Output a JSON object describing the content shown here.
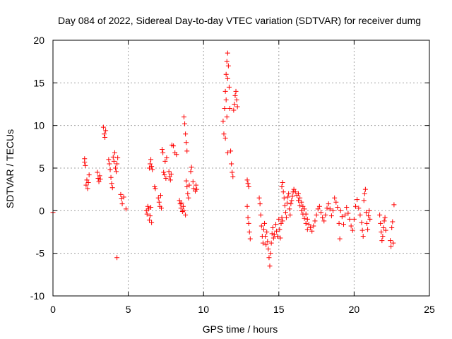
{
  "chart_data": {
    "type": "scatter",
    "title": "Day 084 of 2022, Sidereal Day-to-day VTEC variation (SDTVAR) for receiver dumg",
    "xlabel": "GPS time / hours",
    "ylabel": "SDTVAR / TECUs",
    "xlim": [
      0,
      25
    ],
    "ylim": [
      -10,
      20
    ],
    "xticks": [
      0,
      5,
      10,
      15,
      20,
      25
    ],
    "yticks": [
      -10,
      -5,
      0,
      5,
      10,
      15,
      20
    ],
    "x_tick_labels": [
      "0",
      "5",
      "10",
      "15",
      "20",
      "25"
    ],
    "y_tick_labels": [
      "-10",
      "-5",
      "0",
      "5",
      "10",
      "15",
      "20"
    ],
    "grid": true,
    "marker": "+",
    "color": "#ff0000",
    "series": [
      {
        "name": "SDTVAR",
        "points": [
          [
            0.0,
            -0.2
          ],
          [
            2.1,
            6.1
          ],
          [
            2.1,
            5.7
          ],
          [
            2.15,
            5.3
          ],
          [
            2.2,
            3.0
          ],
          [
            2.25,
            3.6
          ],
          [
            2.3,
            2.6
          ],
          [
            2.35,
            3.3
          ],
          [
            2.4,
            4.2
          ],
          [
            2.95,
            4.5
          ],
          [
            3.0,
            3.8
          ],
          [
            3.05,
            3.4
          ],
          [
            3.1,
            4.1
          ],
          [
            3.15,
            3.7
          ],
          [
            3.35,
            9.8
          ],
          [
            3.4,
            9.0
          ],
          [
            3.45,
            8.6
          ],
          [
            3.5,
            9.4
          ],
          [
            3.7,
            6.0
          ],
          [
            3.75,
            5.5
          ],
          [
            3.8,
            4.8
          ],
          [
            3.85,
            3.9
          ],
          [
            3.9,
            3.2
          ],
          [
            3.95,
            2.7
          ],
          [
            4.0,
            6.3
          ],
          [
            4.05,
            5.8
          ],
          [
            4.1,
            6.8
          ],
          [
            4.15,
            5.0
          ],
          [
            4.2,
            4.6
          ],
          [
            4.25,
            5.5
          ],
          [
            4.3,
            6.2
          ],
          [
            4.25,
            -5.5
          ],
          [
            4.5,
            1.9
          ],
          [
            4.55,
            1.4
          ],
          [
            4.6,
            0.8
          ],
          [
            4.7,
            1.6
          ],
          [
            4.85,
            0.2
          ],
          [
            6.2,
            0.0
          ],
          [
            6.25,
            -0.4
          ],
          [
            6.3,
            0.5
          ],
          [
            6.35,
            0.2
          ],
          [
            6.4,
            -1.1
          ],
          [
            6.45,
            -0.6
          ],
          [
            6.5,
            0.4
          ],
          [
            6.55,
            -1.4
          ],
          [
            6.4,
            5.0
          ],
          [
            6.45,
            5.5
          ],
          [
            6.5,
            6.0
          ],
          [
            6.55,
            5.2
          ],
          [
            6.6,
            4.8
          ],
          [
            6.75,
            2.8
          ],
          [
            6.8,
            2.6
          ],
          [
            7.0,
            1.5
          ],
          [
            7.05,
            1.0
          ],
          [
            7.1,
            0.5
          ],
          [
            7.15,
            1.8
          ],
          [
            7.2,
            0.3
          ],
          [
            7.25,
            7.2
          ],
          [
            7.3,
            6.8
          ],
          [
            7.35,
            4.5
          ],
          [
            7.4,
            4.2
          ],
          [
            7.45,
            5.8
          ],
          [
            7.5,
            3.8
          ],
          [
            7.55,
            6.2
          ],
          [
            7.7,
            4.6
          ],
          [
            7.75,
            4.0
          ],
          [
            7.8,
            3.6
          ],
          [
            7.85,
            4.3
          ],
          [
            7.9,
            7.7
          ],
          [
            8.0,
            7.6
          ],
          [
            8.1,
            6.8
          ],
          [
            8.2,
            6.6
          ],
          [
            8.4,
            1.2
          ],
          [
            8.45,
            0.8
          ],
          [
            8.5,
            0.3
          ],
          [
            8.55,
            0.9
          ],
          [
            8.6,
            -0.1
          ],
          [
            8.65,
            0.5
          ],
          [
            8.7,
            0.0
          ],
          [
            8.7,
            11.0
          ],
          [
            8.75,
            10.2
          ],
          [
            8.8,
            9.0
          ],
          [
            8.85,
            8.0
          ],
          [
            8.9,
            7.0
          ],
          [
            8.8,
            -0.5
          ],
          [
            8.85,
            3.5
          ],
          [
            8.9,
            2.8
          ],
          [
            8.95,
            2.0
          ],
          [
            9.0,
            1.5
          ],
          [
            9.05,
            3.0
          ],
          [
            9.15,
            4.6
          ],
          [
            9.2,
            5.1
          ],
          [
            9.3,
            3.4
          ],
          [
            9.35,
            2.6
          ],
          [
            9.45,
            2.3
          ],
          [
            9.5,
            3.0
          ],
          [
            9.55,
            2.5
          ],
          [
            11.3,
            10.5
          ],
          [
            11.35,
            9.0
          ],
          [
            11.4,
            12.0
          ],
          [
            11.45,
            14.0
          ],
          [
            11.5,
            16.0
          ],
          [
            11.55,
            17.5
          ],
          [
            11.6,
            18.5
          ],
          [
            11.5,
            13.0
          ],
          [
            11.55,
            11.0
          ],
          [
            11.6,
            15.5
          ],
          [
            11.65,
            17.0
          ],
          [
            11.7,
            14.5
          ],
          [
            11.75,
            12.0
          ],
          [
            11.8,
            7.0
          ],
          [
            11.85,
            5.5
          ],
          [
            11.9,
            4.5
          ],
          [
            11.95,
            4.0
          ],
          [
            11.45,
            8.5
          ],
          [
            11.6,
            6.8
          ],
          [
            12.0,
            11.8
          ],
          [
            12.05,
            12.5
          ],
          [
            12.1,
            13.5
          ],
          [
            12.15,
            14.0
          ],
          [
            12.2,
            13.0
          ],
          [
            12.25,
            12.2
          ],
          [
            12.9,
            3.6
          ],
          [
            12.95,
            3.2
          ],
          [
            13.0,
            2.8
          ],
          [
            12.9,
            0.5
          ],
          [
            12.95,
            -0.8
          ],
          [
            13.0,
            -1.5
          ],
          [
            13.05,
            -2.5
          ],
          [
            13.1,
            -3.3
          ],
          [
            13.7,
            1.5
          ],
          [
            13.75,
            0.8
          ],
          [
            13.8,
            -0.5
          ],
          [
            13.85,
            -1.8
          ],
          [
            13.9,
            -3.0
          ],
          [
            13.95,
            -3.8
          ],
          [
            14.0,
            -2.2
          ],
          [
            14.05,
            -1.5
          ],
          [
            14.1,
            -3.0
          ],
          [
            14.15,
            -4.0
          ],
          [
            14.2,
            -2.5
          ],
          [
            14.25,
            -3.6
          ],
          [
            14.3,
            -4.5
          ],
          [
            14.35,
            -5.5
          ],
          [
            14.4,
            -6.5
          ],
          [
            14.45,
            -5.0
          ],
          [
            14.5,
            -3.8
          ],
          [
            14.55,
            -2.7
          ],
          [
            14.6,
            -2.0
          ],
          [
            14.65,
            -3.2
          ],
          [
            14.7,
            -2.8
          ],
          [
            14.8,
            -1.6
          ],
          [
            14.85,
            -2.4
          ],
          [
            14.9,
            -3.0
          ],
          [
            15.0,
            -1.0
          ],
          [
            15.05,
            -2.2
          ],
          [
            15.1,
            -3.2
          ],
          [
            15.15,
            -1.5
          ],
          [
            15.2,
            -0.8
          ],
          [
            15.25,
            -1.2
          ],
          [
            15.2,
            2.8
          ],
          [
            15.25,
            3.3
          ],
          [
            15.3,
            2.2
          ],
          [
            15.35,
            1.5
          ],
          [
            15.4,
            0.6
          ],
          [
            15.45,
            -0.2
          ],
          [
            15.5,
            -0.8
          ],
          [
            15.55,
            0.9
          ],
          [
            15.6,
            1.6
          ],
          [
            15.65,
            2.0
          ],
          [
            15.7,
            0.2
          ],
          [
            15.75,
            -0.5
          ],
          [
            15.8,
            0.8
          ],
          [
            15.85,
            1.2
          ],
          [
            15.9,
            1.7
          ],
          [
            15.95,
            2.2
          ],
          [
            16.0,
            2.5
          ],
          [
            16.1,
            2.2
          ],
          [
            16.2,
            1.8
          ],
          [
            16.3,
            1.2
          ],
          [
            16.4,
            0.6
          ],
          [
            16.5,
            0.0
          ],
          [
            16.6,
            -0.4
          ],
          [
            16.7,
            -0.9
          ],
          [
            16.8,
            -1.5
          ],
          [
            16.9,
            -2.2
          ],
          [
            16.3,
            2.0
          ],
          [
            16.4,
            1.5
          ],
          [
            16.5,
            1.0
          ],
          [
            16.6,
            0.5
          ],
          [
            16.7,
            0.2
          ],
          [
            16.8,
            -0.4
          ],
          [
            16.9,
            -1.0
          ],
          [
            17.0,
            -1.6
          ],
          [
            17.1,
            -2.0
          ],
          [
            17.2,
            -2.4
          ],
          [
            17.3,
            -1.8
          ],
          [
            17.4,
            -1.2
          ],
          [
            17.5,
            -0.5
          ],
          [
            17.6,
            0.2
          ],
          [
            17.7,
            0.5
          ],
          [
            17.8,
            -0.2
          ],
          [
            17.9,
            -0.8
          ],
          [
            18.0,
            -1.2
          ],
          [
            18.1,
            -0.5
          ],
          [
            18.2,
            0.3
          ],
          [
            18.3,
            0.8
          ],
          [
            18.4,
            0.2
          ],
          [
            18.5,
            -0.6
          ],
          [
            18.6,
            0.0
          ],
          [
            18.7,
            1.5
          ],
          [
            18.8,
            1.0
          ],
          [
            18.9,
            0.4
          ],
          [
            19.0,
            -1.5
          ],
          [
            19.05,
            -3.3
          ],
          [
            19.1,
            0.0
          ],
          [
            19.2,
            -0.7
          ],
          [
            19.3,
            -1.6
          ],
          [
            19.4,
            -0.5
          ],
          [
            19.5,
            0.4
          ],
          [
            19.6,
            -0.3
          ],
          [
            19.7,
            -1.0
          ],
          [
            19.8,
            -1.8
          ],
          [
            19.9,
            -2.3
          ],
          [
            20.0,
            -1.0
          ],
          [
            20.1,
            0.5
          ],
          [
            20.2,
            1.3
          ],
          [
            20.3,
            0.3
          ],
          [
            20.4,
            -0.5
          ],
          [
            20.5,
            -1.4
          ],
          [
            20.55,
            -2.3
          ],
          [
            20.6,
            -3.0
          ],
          [
            20.65,
            1.2
          ],
          [
            20.7,
            2.0
          ],
          [
            20.75,
            2.5
          ],
          [
            20.8,
            -0.2
          ],
          [
            20.85,
            -1.5
          ],
          [
            20.9,
            -2.2
          ],
          [
            20.95,
            -0.6
          ],
          [
            21.0,
            0.0
          ],
          [
            21.05,
            -1.0
          ],
          [
            21.7,
            -0.5
          ],
          [
            21.75,
            -1.5
          ],
          [
            21.8,
            -2.5
          ],
          [
            21.85,
            -3.5
          ],
          [
            21.9,
            -3.0
          ],
          [
            21.95,
            -2.0
          ],
          [
            22.0,
            -1.2
          ],
          [
            22.05,
            -0.8
          ],
          [
            22.1,
            -2.3
          ],
          [
            22.4,
            -3.5
          ],
          [
            22.45,
            -4.2
          ],
          [
            22.5,
            -2.0
          ],
          [
            22.55,
            -1.3
          ],
          [
            22.6,
            -3.8
          ],
          [
            22.65,
            0.7
          ]
        ]
      }
    ]
  }
}
